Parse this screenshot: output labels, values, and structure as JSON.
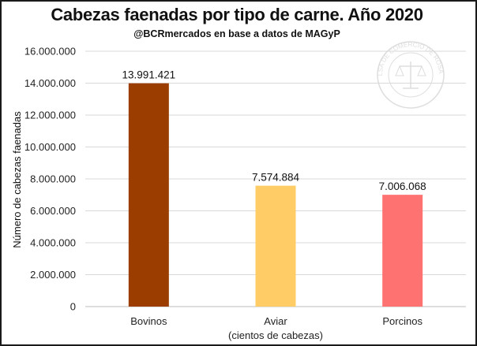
{
  "chart_data": {
    "type": "bar",
    "title": "Cabezas faenadas por tipo de carne. Año 2020",
    "subtitle": "@BCRmercados en base a datos de MAGyP",
    "ylabel": "Número de cabezas faenadas",
    "categories": [
      "Bovinos",
      "Aviar",
      "Porcinos"
    ],
    "category_sublabels": [
      "",
      "(cientos de cabezas)",
      ""
    ],
    "values": [
      13991421,
      7574884,
      7006068
    ],
    "data_labels": [
      "13.991.421",
      "7.574.884",
      "7.006.068"
    ],
    "bar_colors": [
      "#9c3d00",
      "#ffcc66",
      "#ff7272"
    ],
    "ylim": [
      0,
      16000000
    ],
    "yticks": [
      0,
      2000000,
      4000000,
      6000000,
      8000000,
      10000000,
      12000000,
      14000000,
      16000000
    ],
    "ytick_labels": [
      "0",
      "2.000.000",
      "4.000.000",
      "6.000.000",
      "8.000.000",
      "10.000.000",
      "12.000.000",
      "14.000.000",
      "16.000.000"
    ],
    "grid": true,
    "legend": "none"
  },
  "watermark": {
    "icon": "bolsa-de-comercio-seal-icon",
    "text": "BOLSA DE COMERCIO DE ROSARIO"
  }
}
